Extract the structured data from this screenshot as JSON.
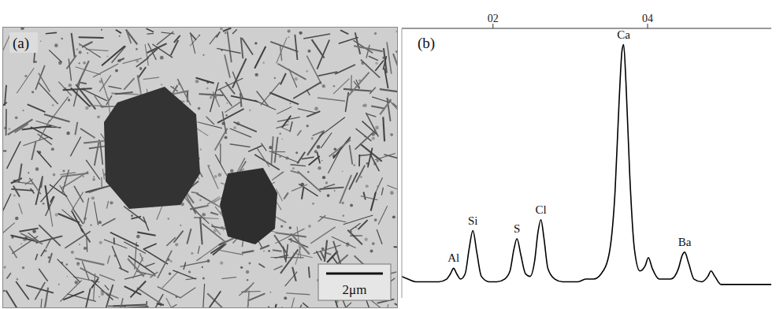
{
  "panel_a": {
    "panel_label": "(a)",
    "scale_bar": "2μm"
  },
  "chart_data": {
    "type": "line",
    "panel_label": "(b)",
    "x": [
      0.82,
      0.9,
      1.0,
      1.1,
      1.2,
      1.3,
      1.4,
      1.45,
      1.49,
      1.53,
      1.58,
      1.64,
      1.69,
      1.74,
      1.79,
      1.85,
      1.95,
      2.05,
      2.15,
      2.22,
      2.27,
      2.31,
      2.36,
      2.42,
      2.48,
      2.54,
      2.58,
      2.62,
      2.66,
      2.71,
      2.8,
      2.9,
      3.0,
      3.1,
      3.2,
      3.3,
      3.4,
      3.5,
      3.58,
      3.63,
      3.67,
      3.69,
      3.72,
      3.77,
      3.83,
      3.9,
      3.97,
      4.01,
      4.06,
      4.15,
      4.3,
      4.4,
      4.45,
      4.48,
      4.53,
      4.6,
      4.7,
      4.78,
      4.82,
      4.87,
      4.95,
      5.1,
      5.3,
      5.45,
      5.6
    ],
    "values": [
      8,
      7,
      6,
      6,
      6,
      6,
      7,
      9,
      11,
      9,
      7,
      9,
      18,
      25,
      17,
      8,
      6,
      6,
      7,
      10,
      18,
      22,
      16,
      9,
      8,
      14,
      24,
      29,
      22,
      11,
      7,
      6,
      6,
      6,
      7,
      7,
      9,
      16,
      40,
      72,
      92,
      94,
      80,
      45,
      18,
      10,
      12,
      15,
      11,
      7,
      7,
      11,
      16,
      17,
      13,
      7,
      6,
      8,
      10,
      8,
      5,
      5,
      5,
      5,
      5
    ],
    "color": "#000000",
    "xlim": [
      0.82,
      5.6
    ],
    "xticks": [
      {
        "value": 2,
        "label": "02"
      },
      {
        "value": 4,
        "label": "04"
      }
    ],
    "ylim": [
      0,
      100
    ],
    "tick_labels": "x",
    "annotations": [
      {
        "text": "Al",
        "x": 1.49
      },
      {
        "text": "Si",
        "x": 1.74
      },
      {
        "text": "S",
        "x": 2.31
      },
      {
        "text": "Cl",
        "x": 2.62
      },
      {
        "text": "Ca",
        "x": 3.69
      },
      {
        "text": "Ba",
        "x": 4.48
      }
    ]
  }
}
